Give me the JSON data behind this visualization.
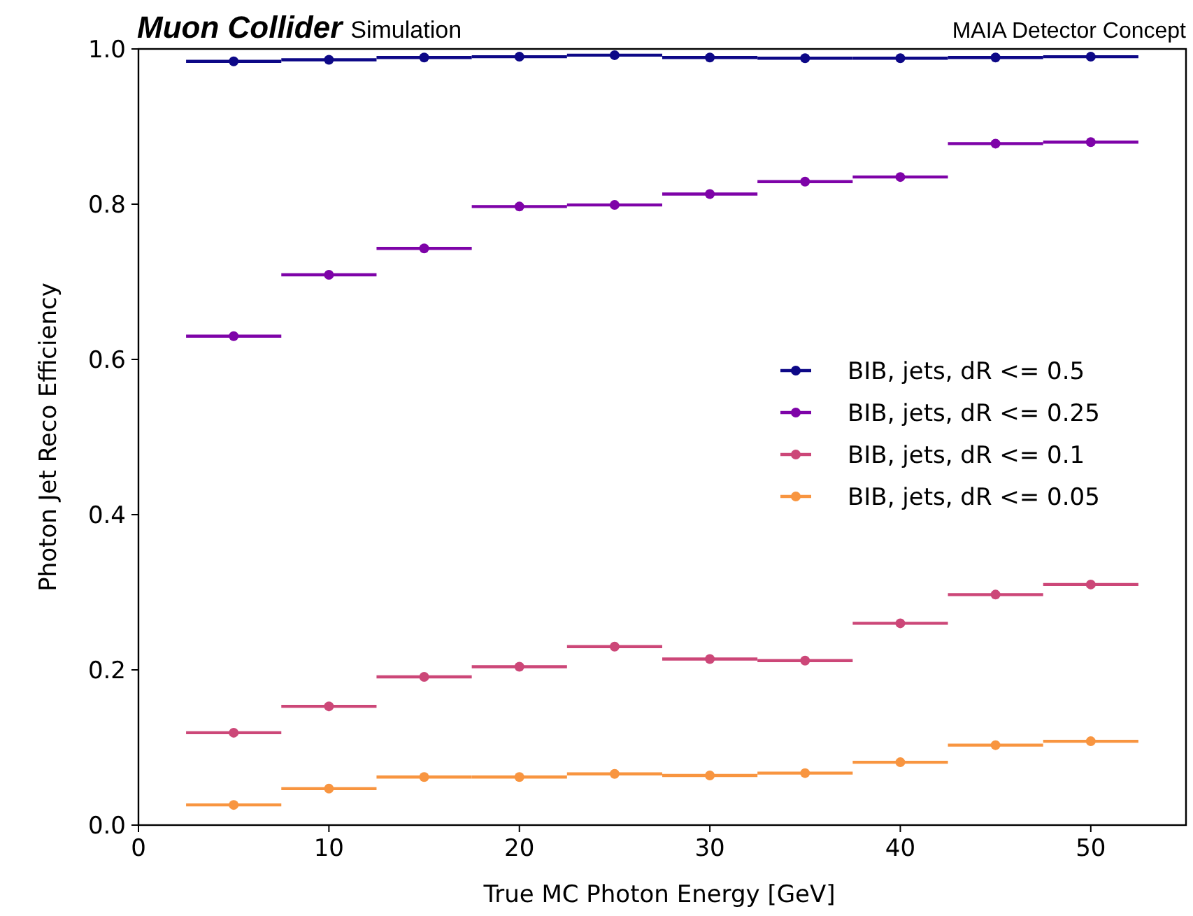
{
  "chart_data": {
    "type": "scatter",
    "title": "Muon Collider",
    "subtitle": "Simulation",
    "annotations": [
      "MAIA Detector Concept"
    ],
    "xlabel": "True MC Photon Energy [GeV]",
    "ylabel": "Photon Jet Reco Efficiency",
    "x": [
      5,
      10,
      15,
      20,
      25,
      30,
      35,
      40,
      45,
      50
    ],
    "series": [
      {
        "name": "BIB, jets, dR <= 0.5",
        "color": "#0d0887",
        "values": [
          0.984,
          0.986,
          0.989,
          0.99,
          0.992,
          0.989,
          0.988,
          0.988,
          0.989,
          0.99
        ],
        "xerrors": [
          2.5,
          2.5,
          2.5,
          2.5,
          2.5,
          2.5,
          2.5,
          2.5,
          2.5,
          2.5
        ]
      },
      {
        "name": "BIB, jets, dR <= 0.25",
        "color": "#7e03a8",
        "values": [
          0.63,
          0.709,
          0.743,
          0.797,
          0.799,
          0.813,
          0.829,
          0.835,
          0.878,
          0.88
        ],
        "xerrors": [
          2.5,
          2.5,
          2.5,
          2.5,
          2.5,
          2.5,
          2.5,
          2.5,
          2.5,
          2.5
        ]
      },
      {
        "name": "BIB, jets, dR <= 0.1",
        "color": "#cc4778",
        "values": [
          0.119,
          0.153,
          0.191,
          0.204,
          0.23,
          0.214,
          0.212,
          0.26,
          0.297,
          0.31
        ],
        "xerrors": [
          2.5,
          2.5,
          2.5,
          2.5,
          2.5,
          2.5,
          2.5,
          2.5,
          2.5,
          2.5
        ]
      },
      {
        "name": "BIB, jets, dR <= 0.05",
        "color": "#f89540",
        "values": [
          0.026,
          0.047,
          0.062,
          0.062,
          0.066,
          0.064,
          0.067,
          0.081,
          0.103,
          0.108
        ],
        "xerrors": [
          2.5,
          2.5,
          2.5,
          2.5,
          2.5,
          2.5,
          2.5,
          2.5,
          2.5,
          2.5
        ]
      }
    ],
    "xlim": [
      0,
      55
    ],
    "xticks": [
      0,
      10,
      20,
      30,
      40,
      50
    ],
    "ylim": [
      0,
      1
    ],
    "yticks": [
      {
        "value": 0,
        "label": "0.0"
      },
      0.2,
      0.4,
      0.6,
      0.8,
      {
        "value": 1,
        "label": "1.0"
      }
    ],
    "marker": "circle",
    "legend": "right",
    "grid": false
  }
}
